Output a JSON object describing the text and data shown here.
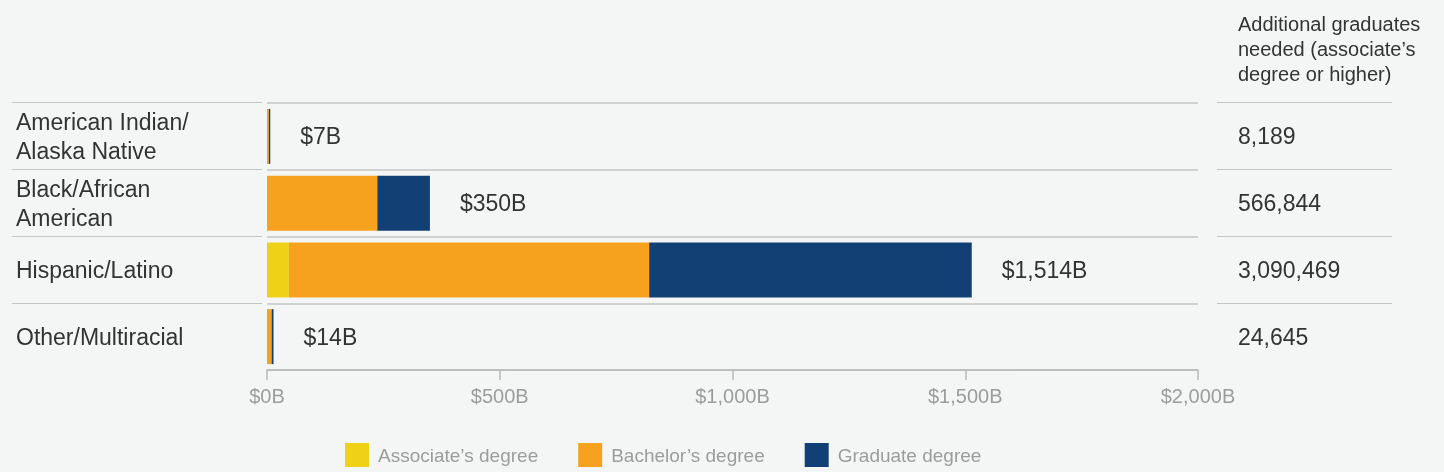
{
  "chart_data": {
    "type": "bar",
    "orientation": "horizontal",
    "stacked": true,
    "categories": [
      "American Indian/Alaska Native",
      "Black/African American",
      "Hispanic/Latino",
      "Other/Multiracial"
    ],
    "series": [
      {
        "name": "Associate’s degree",
        "color": "#efd217",
        "values": [
          null,
          null,
          47,
          null
        ]
      },
      {
        "name": "Bachelor’s degree",
        "color": "#f7a21f",
        "values": [
          4,
          237,
          774,
          10
        ]
      },
      {
        "name": "Graduate degree",
        "color": "#134074",
        "values": [
          3,
          113,
          693,
          4
        ]
      }
    ],
    "xlim": [
      0,
      2000
    ],
    "xticks": [
      {
        "value": 0,
        "label": "$0B"
      },
      {
        "value": 500,
        "label": "$500B"
      },
      {
        "value": 1000,
        "label": "$1,000B"
      },
      {
        "value": 1500,
        "label": "$1,500B"
      },
      {
        "value": 2000,
        "label": "$2,000B"
      }
    ],
    "totals": [
      "$7B",
      "$350B",
      "$1,514B",
      "$14B"
    ],
    "grid": "y",
    "legend": "bottom",
    "annotations": [
      "Additional graduates needed (associate’s degree or higher)",
      "8,189",
      "566,844",
      "3,090,469",
      "24,645"
    ]
  }
}
